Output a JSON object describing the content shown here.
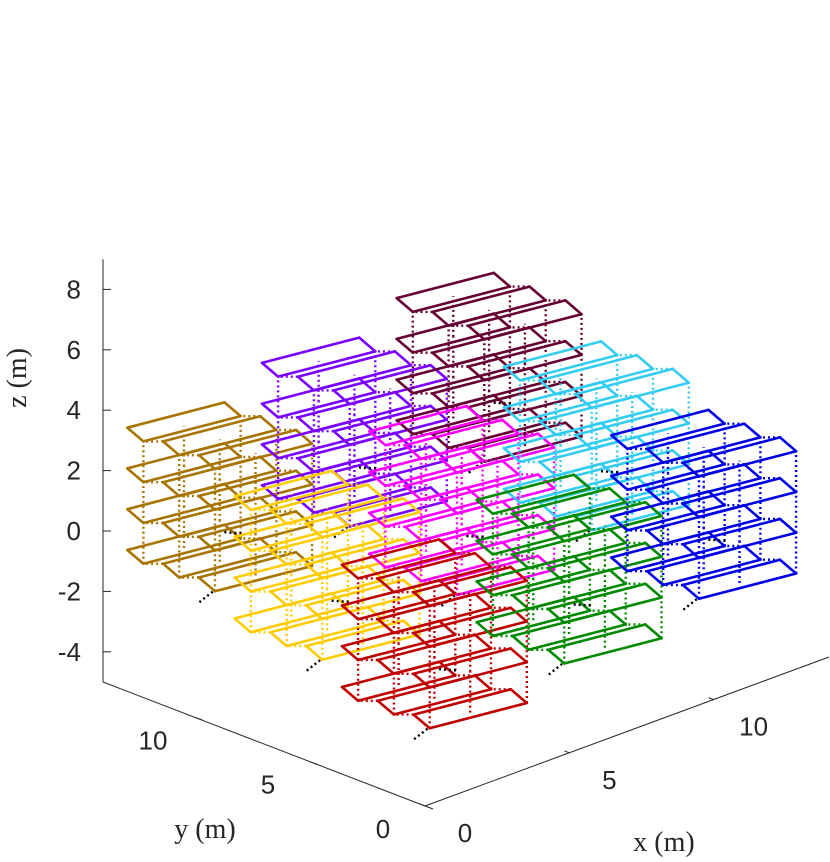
{
  "chart_data": {
    "type": "3d-line",
    "xlabel": "x (m)",
    "ylabel": "y (m)",
    "zlabel": "z (m)",
    "xlim": [
      0,
      14
    ],
    "ylim": [
      0,
      14
    ],
    "zlim": [
      -5,
      9
    ],
    "x_ticks": [
      0,
      5,
      10
    ],
    "y_ticks": [
      0,
      5,
      10
    ],
    "z_ticks": [
      -4,
      -2,
      0,
      2,
      4,
      6,
      8
    ],
    "x_tick_labels": [
      "0",
      "5",
      "10"
    ],
    "y_tick_labels": [
      "0",
      "5",
      "10"
    ],
    "z_tick_labels": [
      "-4",
      "-2",
      "0",
      "2",
      "4",
      "6",
      "8"
    ],
    "grid": false,
    "grid_layout": {
      "x_columns": 3,
      "y_rows": 3,
      "levels_per_column": 4
    },
    "series": [
      {
        "column": [
          0,
          0
        ],
        "color": "#c00000"
      },
      {
        "column": [
          1,
          0
        ],
        "color": "#008a00"
      },
      {
        "column": [
          2,
          0
        ],
        "color": "#0000e6"
      },
      {
        "column": [
          0,
          1
        ],
        "color": "#ffcc00"
      },
      {
        "column": [
          1,
          1
        ],
        "color": "#ff00ff"
      },
      {
        "column": [
          2,
          1
        ],
        "color": "#33ccf2"
      },
      {
        "column": [
          0,
          2
        ],
        "color": "#a87400"
      },
      {
        "column": [
          1,
          2
        ],
        "color": "#7a00ff"
      },
      {
        "column": [
          2,
          2
        ],
        "color": "#660033"
      }
    ],
    "connector_color": "#000000"
  }
}
